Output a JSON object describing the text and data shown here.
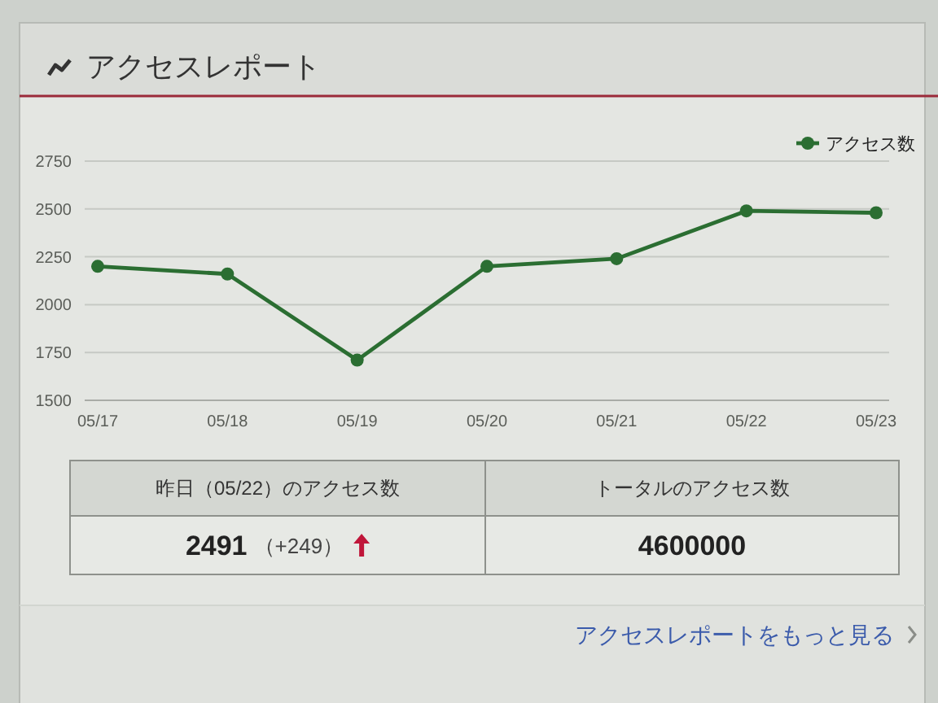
{
  "chart_data": [
    {
      "type": "line",
      "title": "アクセスレポート",
      "categories": [
        "05/17",
        "05/18",
        "05/19",
        "05/20",
        "05/21",
        "05/22",
        "05/23"
      ],
      "series": [
        {
          "name": "アクセス数",
          "color": "#2b6e32",
          "values": [
            2200,
            2160,
            1710,
            2200,
            2240,
            2490,
            2480
          ]
        }
      ],
      "ylim": [
        1500,
        2750
      ],
      "yticks": [
        1500,
        1750,
        2000,
        2250,
        2500,
        2750
      ],
      "grid": "y",
      "legend": "top right",
      "marker": "circle",
      "line_style": "solid"
    },
    {
      "type": "other",
      "annotations": [
        "昨日（05/22）のアクセス数",
        "2491",
        "（+249）",
        "トータルのアクセス数",
        "4600000",
        "アクセスレポートをもっと見る"
      ]
    }
  ]
}
